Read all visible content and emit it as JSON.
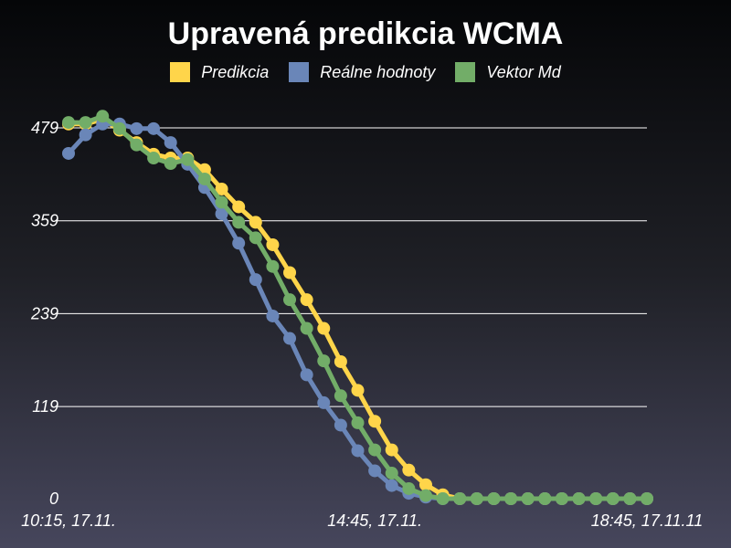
{
  "chart_data": {
    "type": "line",
    "title": "Upravená predikcia WCMA",
    "xlabel": "",
    "ylabel": "",
    "y_ticks": [
      0,
      119,
      239,
      359,
      479
    ],
    "ylim": [
      0,
      479
    ],
    "x_tick_labels": [
      {
        "label": "10:15, 17.11.",
        "index": 0
      },
      {
        "label": "14:45, 17.11.",
        "index": 18
      },
      {
        "label": "18:45, 17.11.11",
        "index": 34
      }
    ],
    "grid": "horizontal",
    "legend_placement": "top-center",
    "points_count": 35,
    "series": [
      {
        "name": "Predikcia",
        "color": "#ffd54a",
        "values": [
          484,
          484,
          490,
          476,
          460,
          445,
          440,
          440,
          425,
          400,
          377,
          357,
          328,
          292,
          257,
          220,
          177,
          140,
          100,
          63,
          37,
          18,
          5,
          0,
          0,
          0,
          0,
          0,
          0,
          0,
          0,
          0,
          0,
          0,
          0
        ]
      },
      {
        "name": "Reálne hodnoty",
        "color": "#6a86b8",
        "values": [
          446,
          470,
          484,
          484,
          478,
          478,
          460,
          432,
          402,
          368,
          330,
          283,
          236,
          207,
          160,
          124,
          95,
          62,
          36,
          17,
          7,
          2,
          0,
          0,
          0,
          0,
          0,
          0,
          0,
          0,
          0,
          0,
          0,
          0,
          0
        ]
      },
      {
        "name": "Vektor Md",
        "color": "#72ad68",
        "values": [
          486,
          486,
          494,
          478,
          457,
          440,
          433,
          438,
          413,
          383,
          357,
          337,
          300,
          257,
          220,
          178,
          133,
          98,
          63,
          33,
          13,
          4,
          0,
          0,
          0,
          0,
          0,
          0,
          0,
          0,
          0,
          0,
          0,
          0,
          0
        ]
      }
    ]
  }
}
